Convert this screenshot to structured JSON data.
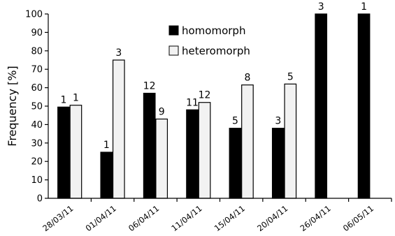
{
  "chart_data": {
    "type": "bar",
    "categories": [
      "28/03/11",
      "01/04/11",
      "06/04/11",
      "11/04/11",
      "15/04/11",
      "20/04/11",
      "26/04/11",
      "06/05/11"
    ],
    "series": [
      {
        "name": "homomorph",
        "color": "#000000",
        "values": [
          49.5,
          25,
          57,
          48,
          38,
          38,
          100,
          100
        ],
        "labels": [
          "1",
          "1",
          "12",
          "11",
          "5",
          "3",
          "3",
          "1"
        ]
      },
      {
        "name": "heteromorph",
        "color": "#f2f2f2",
        "values": [
          50.5,
          75,
          43,
          52,
          61.5,
          62,
          0,
          0
        ],
        "labels": [
          "1",
          "3",
          "9",
          "12",
          "8",
          "5",
          "",
          ""
        ]
      }
    ],
    "ylabel": "Frequency [%]",
    "xlabel": "",
    "ylim": [
      0,
      100
    ],
    "yticks": [
      "0",
      "10",
      "20",
      "30",
      "40",
      "50",
      "60",
      "70",
      "80",
      "90",
      "100"
    ],
    "grid": false,
    "legend_position": "top-center"
  }
}
